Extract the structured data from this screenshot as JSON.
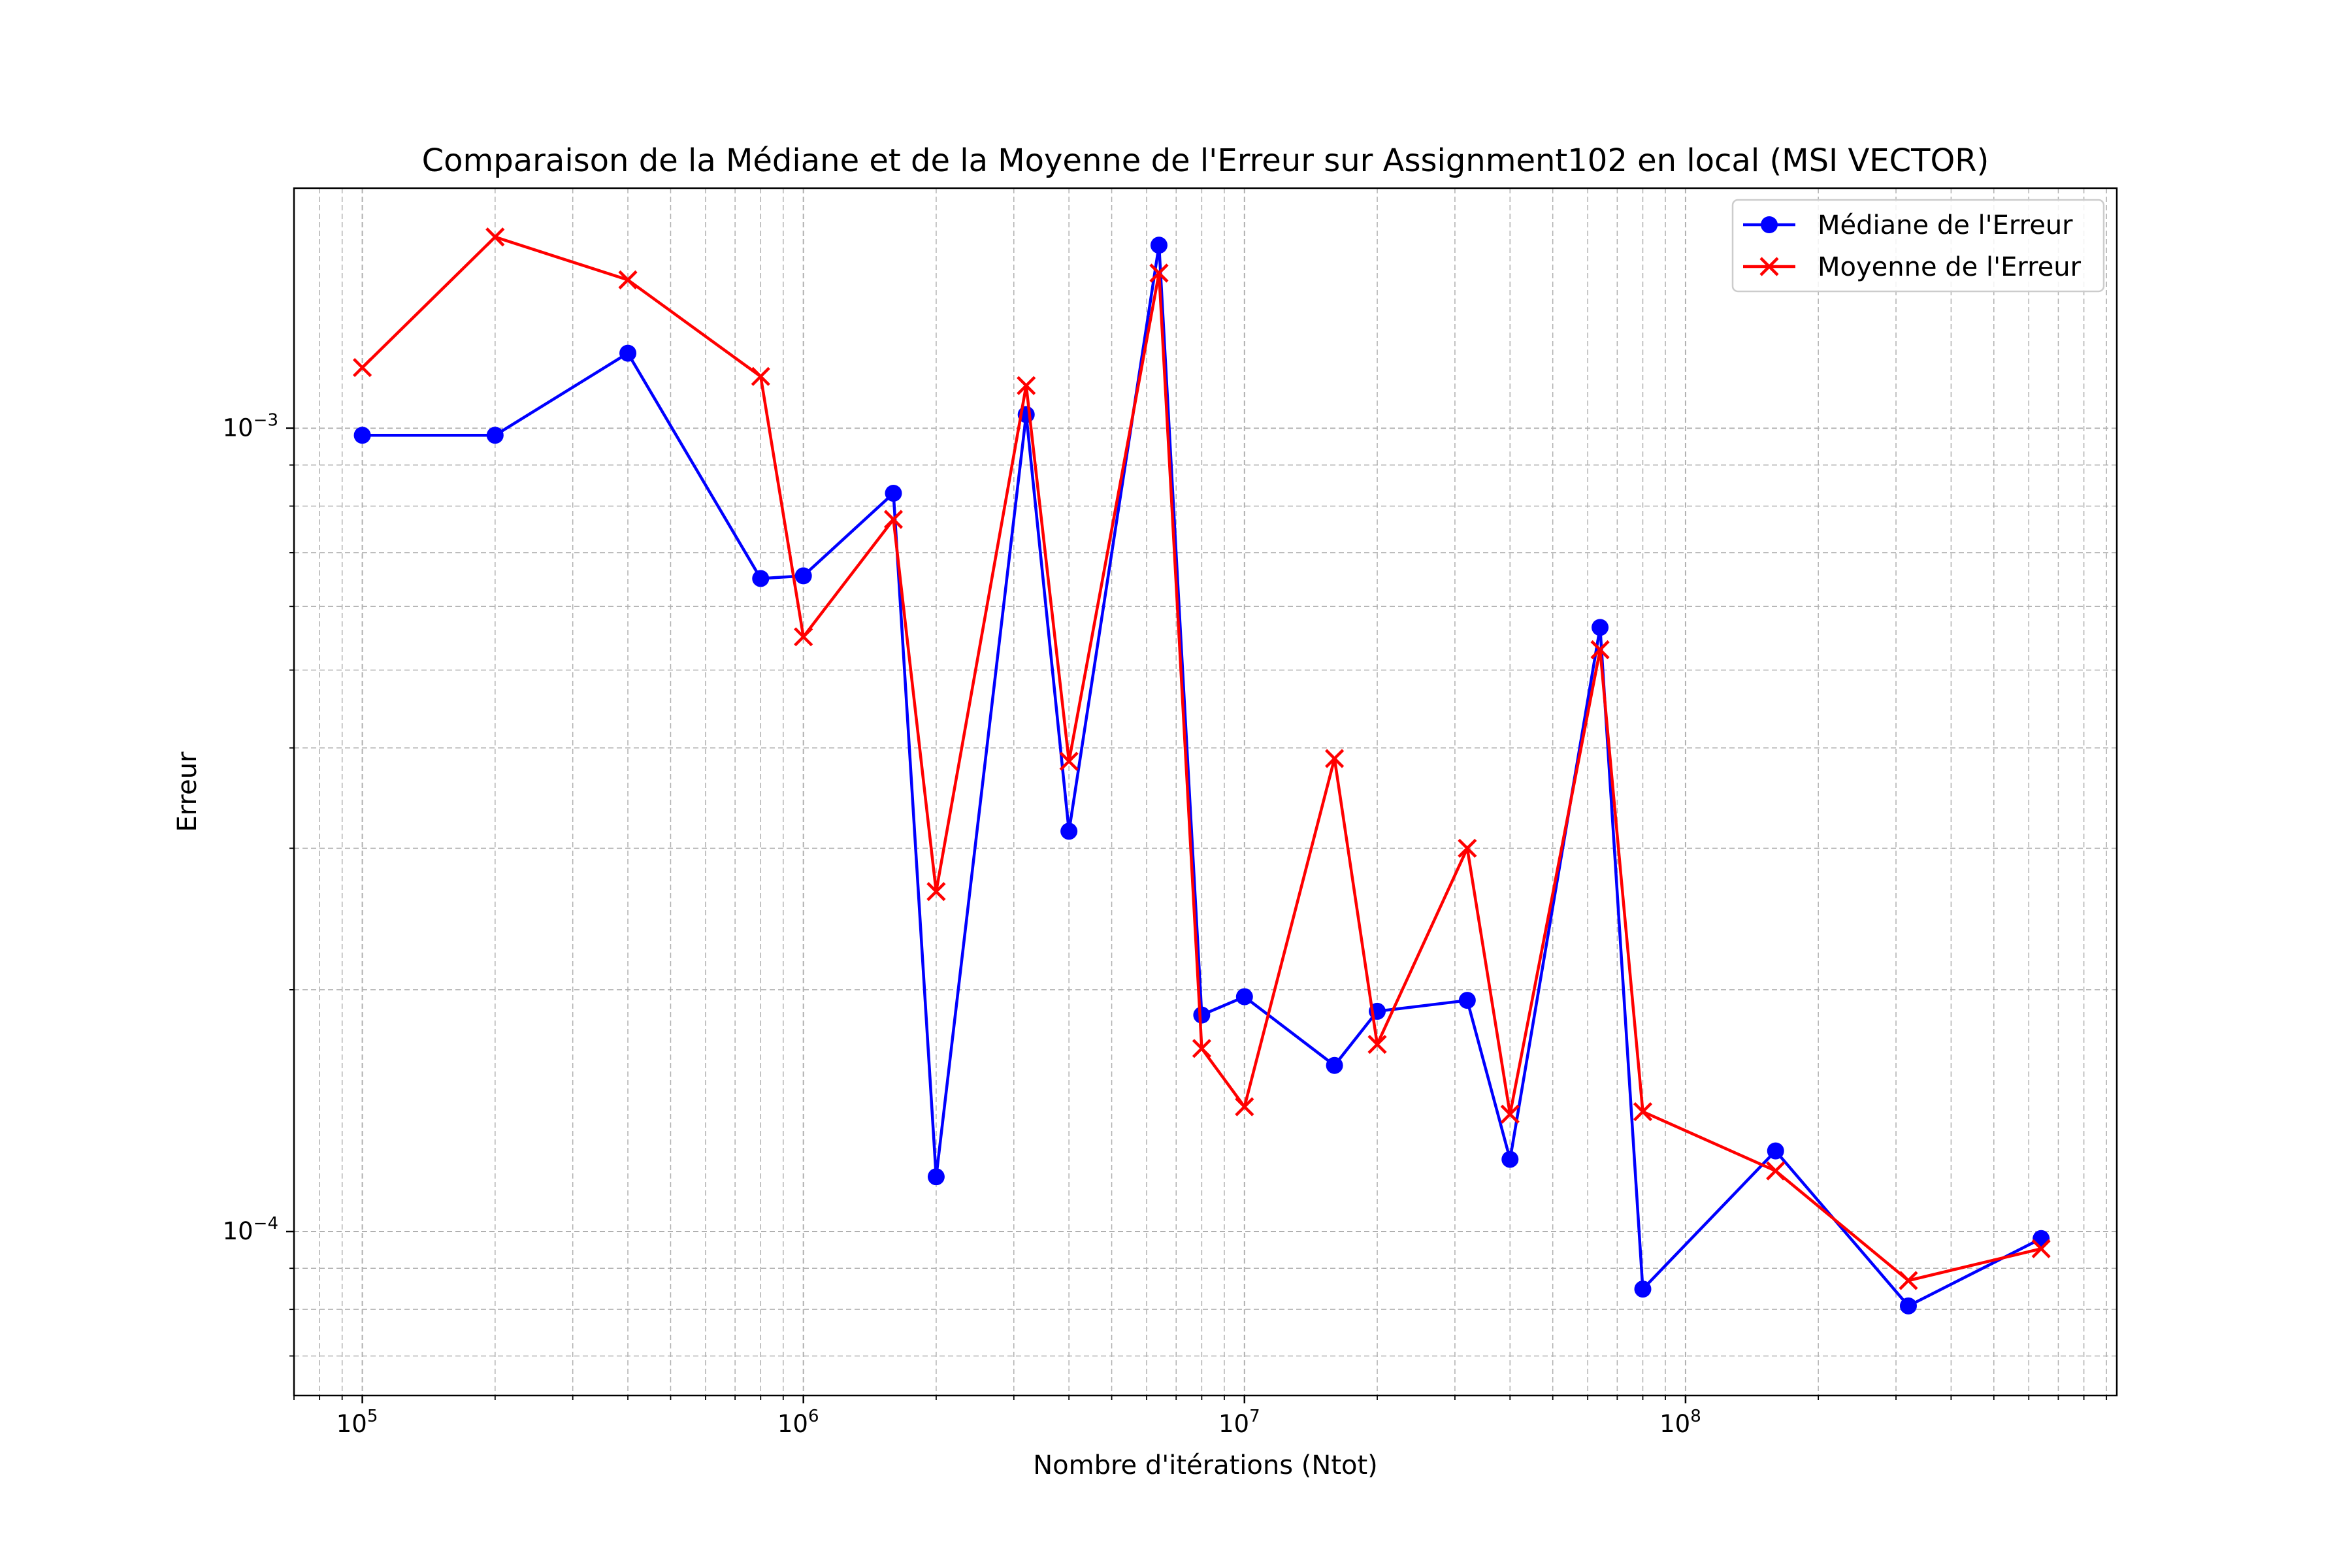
{
  "chart_data": {
    "type": "line",
    "title": "Comparaison de la Médiane et de la Moyenne de l'Erreur sur Assignment102 en local (MSI VECTOR)",
    "xlabel": "Nombre d'itérations (Ntot)",
    "ylabel": "Erreur",
    "xscale": "log",
    "yscale": "log",
    "xlim": [
      70000,
      950000000
    ],
    "ylim": [
      6.25e-05,
      0.00199
    ],
    "grid": "major and minor, dashed",
    "legend_position": "top-right",
    "x_ticks": [
      {
        "value": 100000,
        "base": "10",
        "exp": "5"
      },
      {
        "value": 1000000,
        "base": "10",
        "exp": "6"
      },
      {
        "value": 10000000,
        "base": "10",
        "exp": "7"
      },
      {
        "value": 100000000,
        "base": "10",
        "exp": "8"
      }
    ],
    "y_ticks": [
      {
        "value": 0.001,
        "base": "10",
        "exp": "−3"
      },
      {
        "value": 0.0001,
        "base": "10",
        "exp": "−4"
      }
    ],
    "x": [
      100000,
      200000,
      400000,
      800000,
      1000000,
      1600000,
      2000000,
      3200000,
      4000000,
      6400000,
      8000000,
      10000000,
      16000000,
      20000000,
      32000000,
      40000000,
      64000000,
      80000000,
      160000000,
      320000000,
      640000000
    ],
    "series": [
      {
        "name": "Médiane de l'Erreur",
        "color": "#0000ff",
        "marker": "circle",
        "values": [
          0.00098,
          0.00098,
          0.00124,
          0.00065,
          0.000655,
          0.00083,
          0.000117,
          0.00104,
          0.000315,
          0.00169,
          0.000186,
          0.000196,
          0.000161,
          0.000188,
          0.000194,
          0.000123,
          0.000565,
          8.48e-05,
          0.000126,
          8.08e-05,
          9.8e-05
        ]
      },
      {
        "name": "Moyenne de l'Erreur",
        "color": "#ff0000",
        "marker": "x",
        "values": [
          0.00119,
          0.00173,
          0.00153,
          0.00116,
          0.00055,
          0.00077,
          0.000265,
          0.00113,
          0.000385,
          0.00156,
          0.000169,
          0.000143,
          0.000388,
          0.000171,
          0.0003,
          0.00014,
          0.00053,
          0.000141,
          0.000119,
          8.69e-05,
          9.52e-05
        ]
      }
    ]
  }
}
